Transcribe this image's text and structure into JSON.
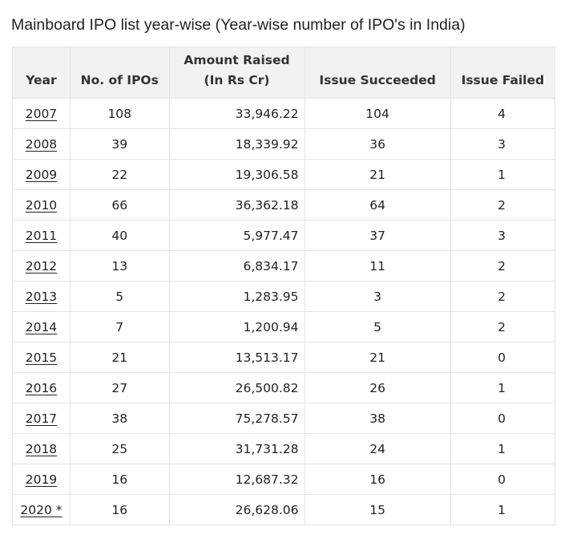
{
  "title": "Mainboard IPO list year-wise (Year-wise number of IPO's in India)",
  "table": {
    "headers": {
      "year": "Year",
      "ipos": "No. of IPOs",
      "amount_line1": "Amount Raised",
      "amount_line2": "(In Rs Cr)",
      "succeeded": "Issue Succeeded",
      "failed": "Issue Failed"
    },
    "rows": [
      {
        "year": "2007",
        "ipos": "108",
        "amount": "33,946.22",
        "succeeded": "104",
        "failed": "4"
      },
      {
        "year": "2008",
        "ipos": "39",
        "amount": "18,339.92",
        "succeeded": "36",
        "failed": "3"
      },
      {
        "year": "2009",
        "ipos": "22",
        "amount": "19,306.58",
        "succeeded": "21",
        "failed": "1"
      },
      {
        "year": "2010",
        "ipos": "66",
        "amount": "36,362.18",
        "succeeded": "64",
        "failed": "2"
      },
      {
        "year": "2011",
        "ipos": "40",
        "amount": "5,977.47",
        "succeeded": "37",
        "failed": "3"
      },
      {
        "year": "2012",
        "ipos": "13",
        "amount": "6,834.17",
        "succeeded": "11",
        "failed": "2"
      },
      {
        "year": "2013",
        "ipos": "5",
        "amount": "1,283.95",
        "succeeded": "3",
        "failed": "2"
      },
      {
        "year": "2014",
        "ipos": "7",
        "amount": "1,200.94",
        "succeeded": "5",
        "failed": "2"
      },
      {
        "year": "2015",
        "ipos": "21",
        "amount": "13,513.17",
        "succeeded": "21",
        "failed": "0"
      },
      {
        "year": "2016",
        "ipos": "27",
        "amount": "26,500.82",
        "succeeded": "26",
        "failed": "1"
      },
      {
        "year": "2017",
        "ipos": "38",
        "amount": "75,278.57",
        "succeeded": "38",
        "failed": "0"
      },
      {
        "year": "2018",
        "ipos": "25",
        "amount": "31,731.28",
        "succeeded": "24",
        "failed": "1"
      },
      {
        "year": "2019",
        "ipos": "16",
        "amount": "12,687.32",
        "succeeded": "16",
        "failed": "0"
      },
      {
        "year": "2020 *",
        "ipos": "16",
        "amount": "26,628.06",
        "succeeded": "15",
        "failed": "1"
      }
    ]
  }
}
